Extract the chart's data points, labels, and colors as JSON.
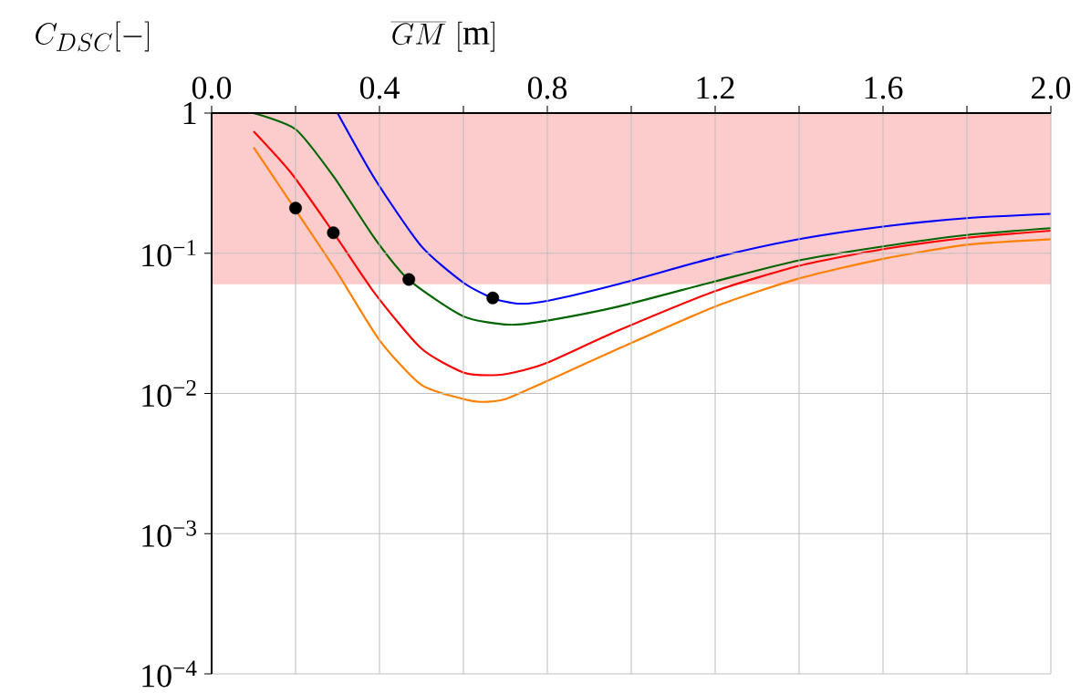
{
  "chart_data": {
    "type": "line",
    "xlabel": "\\overline{GM}\\ [\\mathrm{m}]",
    "ylabel": "C_{DSC}[-]",
    "log": "y",
    "grid": true,
    "line_style": "solid",
    "xlim": [
      0,
      2
    ],
    "ylim": [
      0.0001,
      1
    ],
    "xticks": [
      {
        "value": 0,
        "label": "0.0"
      },
      {
        "value": 0.2,
        "label": null
      },
      {
        "value": 0.4,
        "label": "0.4"
      },
      {
        "value": 0.6,
        "label": null
      },
      {
        "value": 0.8,
        "label": "0.8"
      },
      {
        "value": 1.0,
        "label": null
      },
      {
        "value": 1.2,
        "label": "1.2"
      },
      {
        "value": 1.4,
        "label": null
      },
      {
        "value": 1.6,
        "label": "1.6"
      },
      {
        "value": 1.8,
        "label": null
      },
      {
        "value": 2.0,
        "label": "2.0"
      }
    ],
    "yticks": [
      {
        "value": 0.0001,
        "label": "10$^{−4}$"
      },
      {
        "value": 0.001,
        "label": "10$^{−3}$"
      },
      {
        "value": 0.01,
        "label": "10$^{−2}$"
      },
      {
        "value": 0.1,
        "label": "10$^{−1}$"
      },
      1
    ],
    "bands": [
      {
        "axis": "y",
        "from": 0.06,
        "to": 1,
        "color": "#fccbcb"
      }
    ],
    "series": [
      {
        "marker": "none",
        "color": "#0000ff",
        "x": [
          0.3,
          0.39,
          0.5,
          0.6,
          0.67,
          0.73,
          0.8,
          0.97,
          1.2,
          1.4,
          1.6,
          1.8,
          2.0
        ],
        "values": [
          1.0,
          0.335,
          0.112,
          0.0617,
          0.0479,
          0.0437,
          0.0457,
          0.0603,
          0.0933,
          0.126,
          0.155,
          0.178,
          0.191
        ]
      },
      {
        "marker": "none",
        "color": "#006400",
        "x": [
          0.1,
          0.2,
          0.29,
          0.39,
          0.47,
          0.6,
          0.71,
          0.8,
          0.97,
          1.2,
          1.4,
          1.6,
          1.8,
          2.0
        ],
        "values": [
          1.0,
          0.767,
          0.355,
          0.126,
          0.0646,
          0.0355,
          0.0309,
          0.0331,
          0.0417,
          0.0631,
          0.0891,
          0.112,
          0.135,
          0.151
        ]
      },
      {
        "marker": "none",
        "color": "#ff0000",
        "x": [
          0.1,
          0.19,
          0.29,
          0.39,
          0.5,
          0.6,
          0.67,
          0.72,
          0.8,
          0.97,
          1.2,
          1.4,
          1.6,
          1.8,
          2.0
        ],
        "values": [
          0.741,
          0.372,
          0.141,
          0.0513,
          0.0209,
          0.0141,
          0.0135,
          0.0141,
          0.0166,
          0.0282,
          0.0537,
          0.0813,
          0.107,
          0.129,
          0.145
        ]
      },
      {
        "marker": "none",
        "color": "#ff8000",
        "x": [
          0.1,
          0.2,
          0.3,
          0.4,
          0.5,
          0.6,
          0.64,
          0.7,
          0.8,
          0.97,
          1.2,
          1.4,
          1.6,
          1.8,
          2.0
        ],
        "values": [
          0.569,
          0.204,
          0.0724,
          0.024,
          0.0115,
          0.00912,
          0.00871,
          0.00912,
          0.0123,
          0.0209,
          0.0417,
          0.0661,
          0.0912,
          0.115,
          0.126
        ]
      },
      {
        "type": "scatter",
        "marker": "circle",
        "color": "#000000",
        "x": [
          0.2,
          0.29,
          0.47,
          0.67
        ],
        "values": [
          0.21,
          0.14,
          0.065,
          0.048
        ]
      }
    ]
  }
}
